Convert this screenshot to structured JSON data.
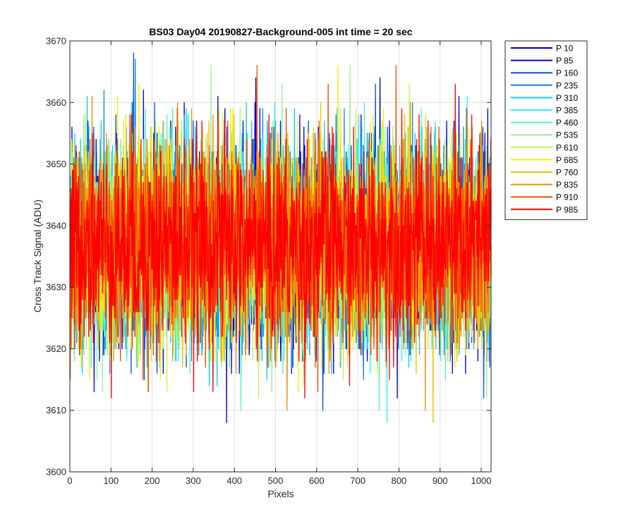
{
  "chart_data": {
    "type": "line",
    "title": "BS03 Day04 20190827-Background-005 int time = 20 sec",
    "xlabel": "Pixels",
    "ylabel": "Cross Track Signal (ADU)",
    "xlim": [
      0,
      1024
    ],
    "ylim": [
      3600,
      3670
    ],
    "xticks": [
      0,
      100,
      200,
      300,
      400,
      500,
      600,
      700,
      800,
      900,
      1000
    ],
    "yticks": [
      3600,
      3610,
      3620,
      3630,
      3640,
      3650,
      3660,
      3670
    ],
    "grid": true,
    "legend_position": "outside-top-right",
    "series_mean": 3637,
    "series_range": [
      3606,
      3668
    ],
    "x_count": 1024,
    "series": [
      {
        "name": "P 10",
        "color": "#0000b3"
      },
      {
        "name": "P 85",
        "color": "#0000e6"
      },
      {
        "name": "P 160",
        "color": "#0a50dc"
      },
      {
        "name": "P 235",
        "color": "#1485eb"
      },
      {
        "name": "P 310",
        "color": "#12c8f0"
      },
      {
        "name": "P 385",
        "color": "#30f0f0"
      },
      {
        "name": "P 460",
        "color": "#55f0c8"
      },
      {
        "name": "P 535",
        "color": "#96f096"
      },
      {
        "name": "P 610",
        "color": "#c8f050"
      },
      {
        "name": "P 685",
        "color": "#f0f000"
      },
      {
        "name": "P 760",
        "color": "#f0c000"
      },
      {
        "name": "P 835",
        "color": "#f08c00"
      },
      {
        "name": "P 910",
        "color": "#f05000"
      },
      {
        "name": "P 985",
        "color": "#ff0000"
      }
    ]
  }
}
